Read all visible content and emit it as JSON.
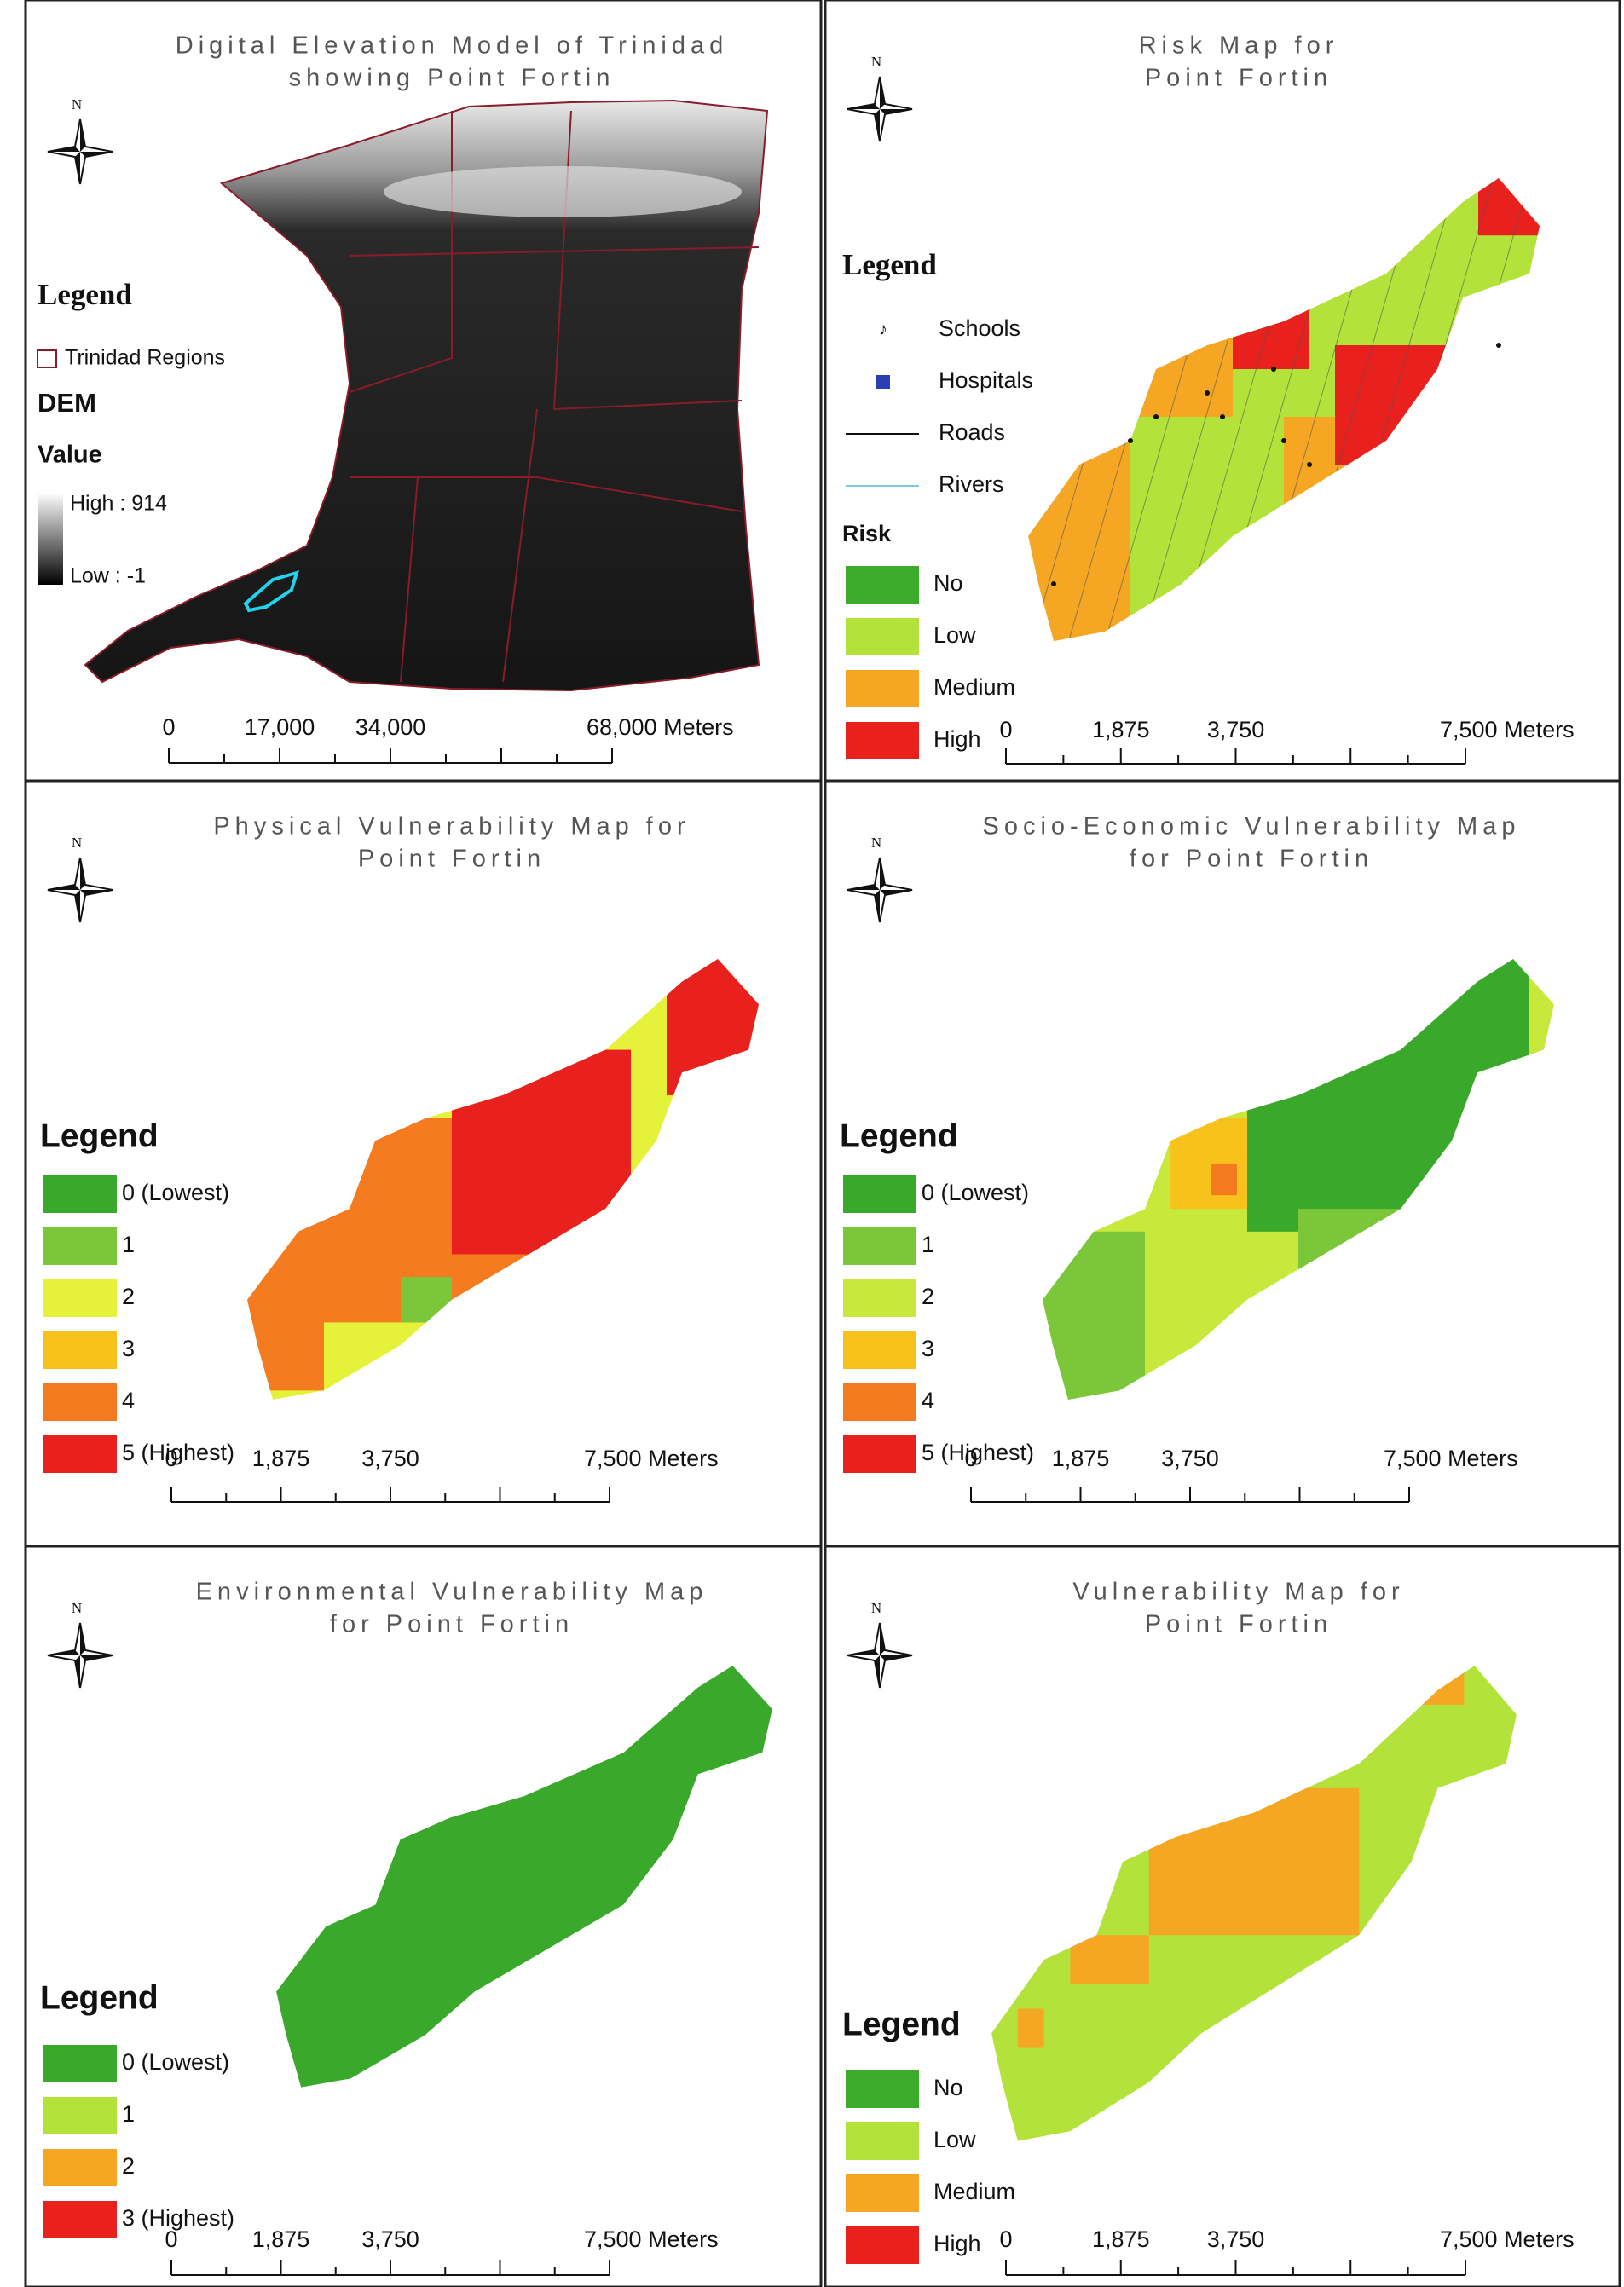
{
  "panels": [
    {
      "title": [
        "Digital Elevation Model of Trinidad",
        "showing Point Fortin"
      ],
      "north": "N",
      "legend": {
        "title": "Legend",
        "regions": "Trinidad Regions",
        "dem": "DEM",
        "value": "Value",
        "high": "High : 914",
        "low": "Low : -1"
      },
      "scale": [
        "0",
        "17,000",
        "34,000",
        "68,000 Meters"
      ]
    },
    {
      "title": [
        "Risk Map for",
        "Point Fortin"
      ],
      "north": "N",
      "legend": {
        "title": "Legend",
        "features": [
          "Schools",
          "Hospitals",
          "Roads",
          "Rivers"
        ],
        "group": "Risk",
        "items": [
          {
            "label": "No",
            "color": "#3cab2a"
          },
          {
            "label": "Low",
            "color": "#b3e23b"
          },
          {
            "label": "Medium",
            "color": "#f5a623"
          },
          {
            "label": "High",
            "color": "#e8201e"
          }
        ]
      },
      "scale": [
        "0",
        "1,875",
        "3,750",
        "7,500 Meters"
      ]
    },
    {
      "title": [
        "Physical Vulnerability Map for",
        "Point Fortin"
      ],
      "north": "N",
      "legend": {
        "title": "Legend",
        "items": [
          {
            "label": "0 (Lowest)",
            "color": "#3aa82b"
          },
          {
            "label": "1",
            "color": "#7cc63a"
          },
          {
            "label": "2",
            "color": "#e6f23a"
          },
          {
            "label": "3",
            "color": "#f8c21c"
          },
          {
            "label": "4",
            "color": "#f47b20"
          },
          {
            "label": "5 (Highest)",
            "color": "#e8201e"
          }
        ]
      },
      "scale": [
        "0",
        "1,875",
        "3,750",
        "7,500 Meters"
      ]
    },
    {
      "title": [
        "Socio-Economic Vulnerability Map",
        "for Point Fortin"
      ],
      "north": "N",
      "legend": {
        "title": "Legend",
        "items": [
          {
            "label": "0 (Lowest)",
            "color": "#3aa82b"
          },
          {
            "label": "1",
            "color": "#7cc63a"
          },
          {
            "label": "2",
            "color": "#c8e83c"
          },
          {
            "label": "3",
            "color": "#f8c21c"
          },
          {
            "label": "4",
            "color": "#f47b20"
          },
          {
            "label": "5 (Highest)",
            "color": "#e8201e"
          }
        ]
      },
      "scale": [
        "0",
        "1,875",
        "3,750",
        "7,500 Meters"
      ]
    },
    {
      "title": [
        "Environmental Vulnerability Map",
        "for Point Fortin"
      ],
      "north": "N",
      "legend": {
        "title": "Legend",
        "items": [
          {
            "label": "0 (Lowest)",
            "color": "#3aa82b"
          },
          {
            "label": "1",
            "color": "#b3e23b"
          },
          {
            "label": "2",
            "color": "#f5a623"
          },
          {
            "label": "3 (Highest)",
            "color": "#e8201e"
          }
        ]
      },
      "scale": [
        "0",
        "1,875",
        "3,750",
        "7,500 Meters"
      ]
    },
    {
      "title": [
        "Vulnerability Map for",
        "Point Fortin"
      ],
      "north": "N",
      "legend": {
        "title": "Legend",
        "items": [
          {
            "label": "No",
            "color": "#3cab2a"
          },
          {
            "label": "Low",
            "color": "#b3e23b"
          },
          {
            "label": "Medium",
            "color": "#f5a623"
          },
          {
            "label": "High",
            "color": "#e8201e"
          }
        ]
      },
      "scale": [
        "0",
        "1,875",
        "3,750",
        "7,500 Meters"
      ]
    }
  ]
}
